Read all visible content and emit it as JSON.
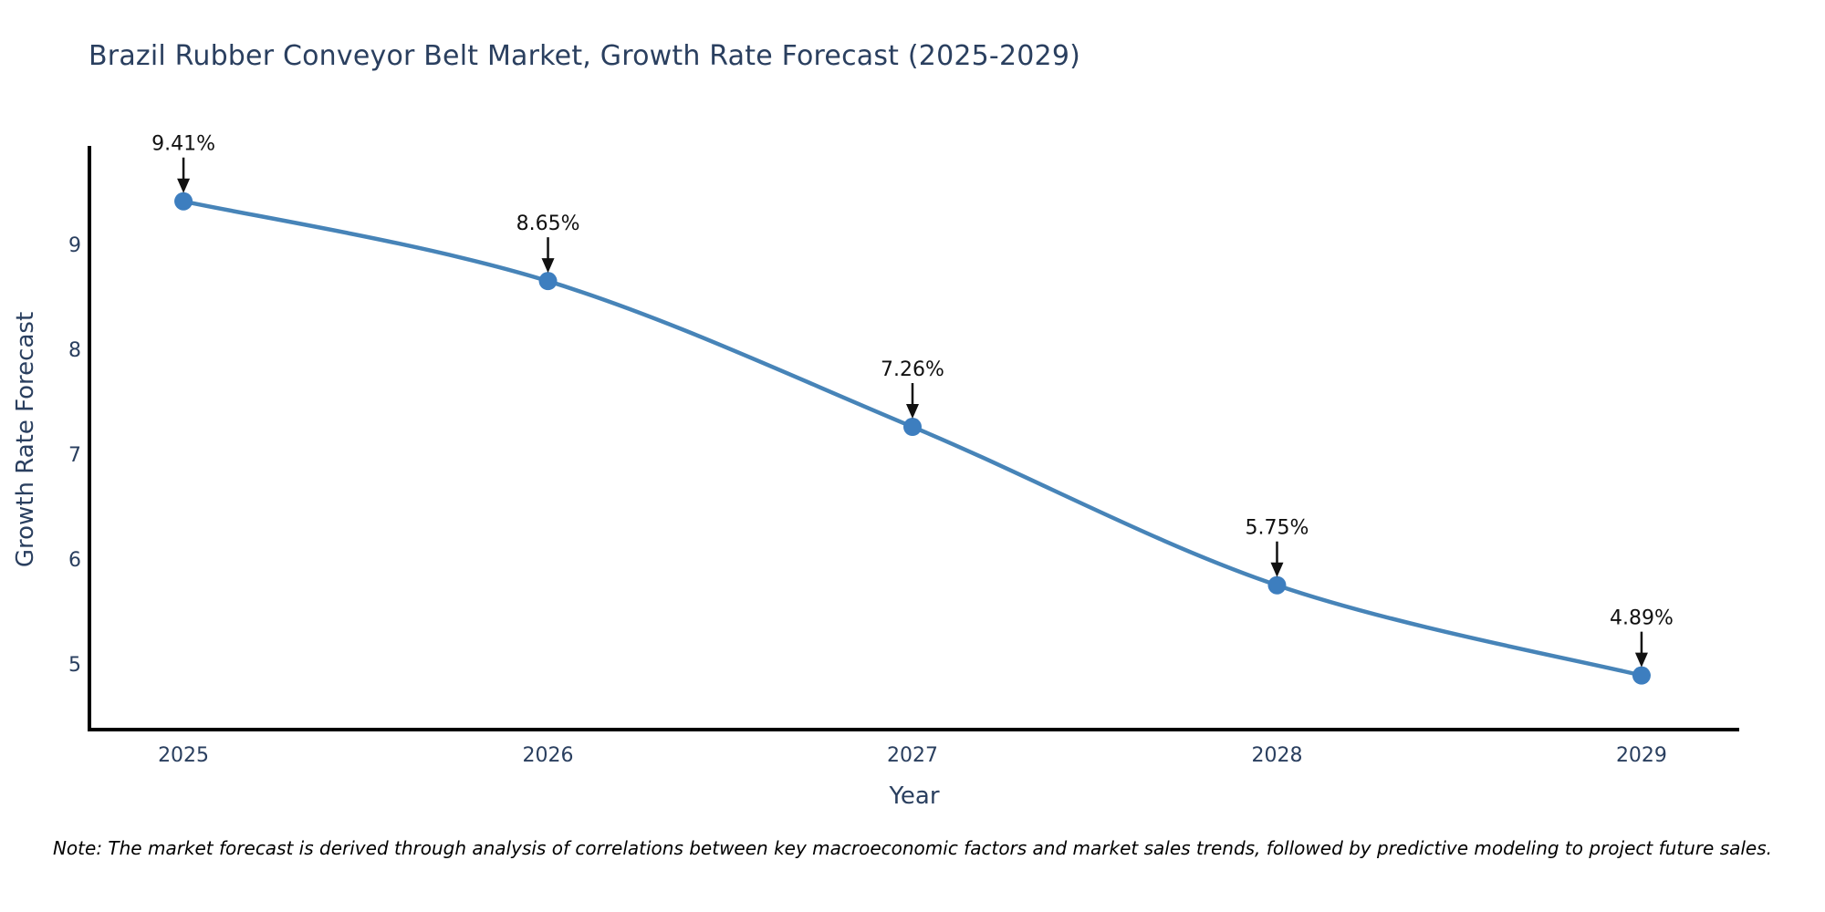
{
  "title": "Brazil Rubber Conveyor Belt Market, Growth Rate Forecast (2025-2029)",
  "note": "Note: The market forecast is derived through analysis of correlations between key macroeconomic factors and market sales trends, followed by predictive modeling to project future sales.",
  "chart_data": {
    "type": "line",
    "title": "Brazil Rubber Conveyor Belt Market, Growth Rate Forecast (2025-2029)",
    "xlabel": "Year",
    "ylabel": "Growth Rate Forecast",
    "x": [
      2025,
      2026,
      2027,
      2028,
      2029
    ],
    "series": [
      {
        "name": "Growth Rate Forecast",
        "values": [
          9.41,
          8.65,
          7.26,
          5.75,
          4.89
        ]
      }
    ],
    "point_labels": [
      "9.41%",
      "8.65%",
      "7.26%",
      "5.75%",
      "4.89%"
    ],
    "x_tick_labels": [
      "2025",
      "2026",
      "2027",
      "2028",
      "2029"
    ],
    "y_ticks": [
      5,
      6,
      7,
      8,
      9
    ],
    "xlim": [
      2024.742,
      2029.268
    ],
    "ylim": [
      4.374,
      9.938
    ],
    "grid": false,
    "legend_position": "none",
    "line_color": "#4784b8",
    "marker_color": "#3d7ebf",
    "axis_color": "#000000",
    "tick_color": "#2a3f5f",
    "annotation_color": "#111111"
  }
}
